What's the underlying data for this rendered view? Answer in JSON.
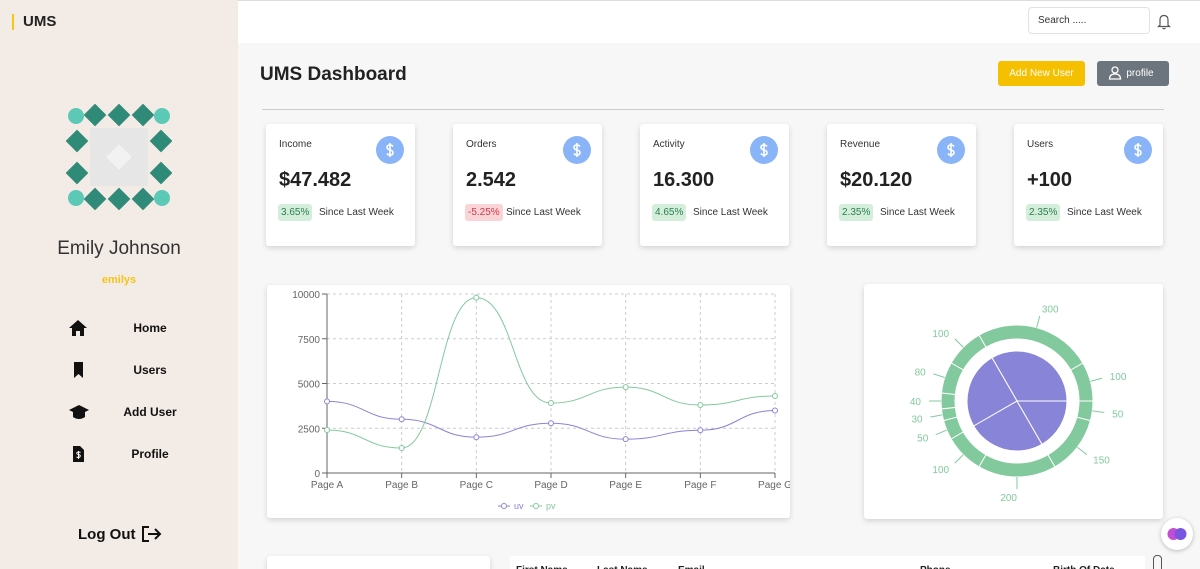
{
  "sidebar": {
    "brand": "UMS",
    "user_name": "Emily Johnson",
    "username": "emilys",
    "nav": [
      "Home",
      "Users",
      "Add User",
      "Profile"
    ],
    "logout": "Log Out"
  },
  "header": {
    "search_placeholder": "Search .....",
    "title": "UMS Dashboard",
    "buttons": [
      "Add New User",
      "profile"
    ]
  },
  "cards": [
    {
      "title": "Income",
      "value": "$47.482",
      "change": "3.65%",
      "note": "Since Last Week"
    },
    {
      "title": "Orders",
      "value": "2.542",
      "change": "-5.25%",
      "note": "Since Last Week"
    },
    {
      "title": "Activity",
      "value": "16.300",
      "change": "4.65%",
      "note": "Since Last Week"
    },
    {
      "title": "Revenue",
      "value": "$20.120",
      "change": "2.35%",
      "note": "Since Last Week"
    },
    {
      "title": "Users",
      "value": "+100",
      "change": "2.35%",
      "note": "Since Last Week"
    }
  ],
  "chart_data": [
    {
      "type": "line",
      "categories": [
        "Page A",
        "Page B",
        "Page C",
        "Page D",
        "Page E",
        "Page F",
        "Page G"
      ],
      "series": [
        {
          "name": "uv",
          "color": "#8884d8",
          "values": [
            4000,
            3000,
            2000,
            2780,
            1890,
            2390,
            3490
          ]
        },
        {
          "name": "pv",
          "color": "#82ca9d",
          "values": [
            2400,
            1398,
            9800,
            3908,
            4800,
            3800,
            4300
          ]
        }
      ],
      "ylim": [
        0,
        10000
      ],
      "yticks": [
        0,
        2500,
        5000,
        7500,
        10000
      ],
      "grid": true
    },
    {
      "type": "pie",
      "series": [
        {
          "color": "#8884d8",
          "values": [
            400,
            300,
            300,
            200
          ]
        },
        {
          "color": "#82ca9d",
          "values": [
            100,
            300,
            100,
            80,
            40,
            30,
            50,
            100,
            200,
            150,
            50
          ]
        }
      ]
    }
  ],
  "table": {
    "columns": [
      "First Name",
      "Last Name",
      "Email",
      "Phone",
      "Birth Of Date"
    ]
  }
}
